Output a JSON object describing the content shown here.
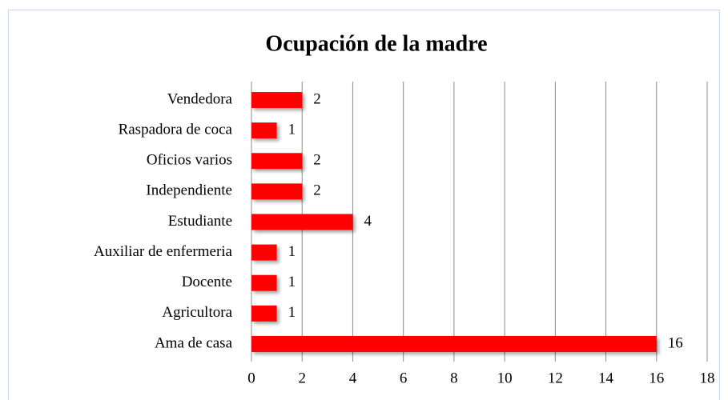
{
  "chart_data": {
    "type": "bar",
    "orientation": "horizontal",
    "title": "Ocupación de la madre",
    "categories": [
      "Vendedora",
      "Raspadora de coca",
      "Oficios varios",
      "Independiente",
      "Estudiante",
      "Auxiliar de enfermeria",
      "Docente",
      "Agricultora",
      "Ama de casa"
    ],
    "values": [
      2,
      1,
      2,
      2,
      4,
      1,
      1,
      1,
      16
    ],
    "color": "#ff0000",
    "xlim": [
      0,
      18
    ],
    "xticks": [
      0,
      2,
      4,
      6,
      8,
      10,
      12,
      14,
      16,
      18
    ],
    "grid": true
  }
}
